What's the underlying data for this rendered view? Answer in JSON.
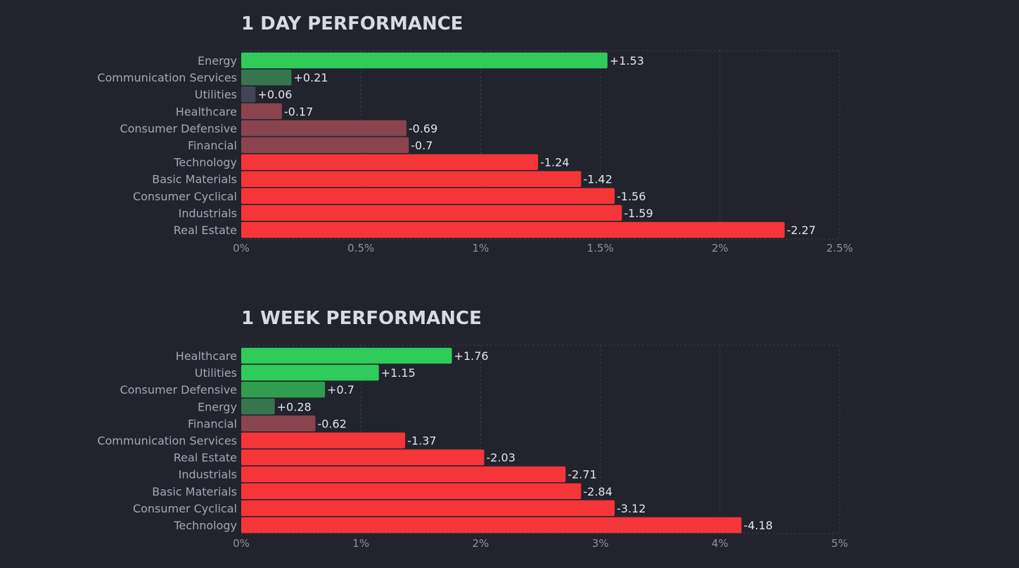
{
  "colors": {
    "background": "#21242d",
    "strong_green": "#30cc5a",
    "mid_green": "#2f9e4f",
    "weak_green": "#35764e",
    "neutral": "#414554",
    "weak_red": "#8b444e",
    "strong_red": "#f63538"
  },
  "chart_data": [
    {
      "type": "bar",
      "orientation": "horizontal",
      "title": "1 DAY PERFORMANCE",
      "categories": [
        "Energy",
        "Communication Services",
        "Utilities",
        "Healthcare",
        "Consumer Defensive",
        "Financial",
        "Technology",
        "Basic Materials",
        "Consumer Cyclical",
        "Industrials",
        "Real Estate"
      ],
      "values": [
        1.53,
        0.21,
        0.06,
        -0.17,
        -0.69,
        -0.7,
        -1.24,
        -1.42,
        -1.56,
        -1.59,
        -2.27
      ],
      "value_labels": [
        "+1.53",
        "+0.21",
        "+0.06",
        "-0.17",
        "-0.69",
        "-0.7",
        "-1.24",
        "-1.42",
        "-1.56",
        "-1.59",
        "-2.27"
      ],
      "xlim": [
        0,
        2.5
      ],
      "ticks": [
        0,
        0.5,
        1,
        1.5,
        2,
        2.5
      ],
      "tick_labels": [
        "0%",
        "0.5%",
        "1%",
        "1.5%",
        "2%",
        "2.5%"
      ],
      "bar_length": "absolute value",
      "grid": true
    },
    {
      "type": "bar",
      "orientation": "horizontal",
      "title": "1 WEEK PERFORMANCE",
      "categories": [
        "Healthcare",
        "Utilities",
        "Consumer Defensive",
        "Energy",
        "Financial",
        "Communication Services",
        "Real Estate",
        "Industrials",
        "Basic Materials",
        "Consumer Cyclical",
        "Technology"
      ],
      "values": [
        1.76,
        1.15,
        0.7,
        0.28,
        -0.62,
        -1.37,
        -2.03,
        -2.71,
        -2.84,
        -3.12,
        -4.18
      ],
      "value_labels": [
        "+1.76",
        "+1.15",
        "+0.7",
        "+0.28",
        "-0.62",
        "-1.37",
        "-2.03",
        "-2.71",
        "-2.84",
        "-3.12",
        "-4.18"
      ],
      "xlim": [
        0,
        5
      ],
      "ticks": [
        0,
        1,
        2,
        3,
        4,
        5
      ],
      "tick_labels": [
        "0%",
        "1%",
        "2%",
        "3%",
        "4%",
        "5%"
      ],
      "bar_length": "absolute value",
      "grid": true
    }
  ]
}
